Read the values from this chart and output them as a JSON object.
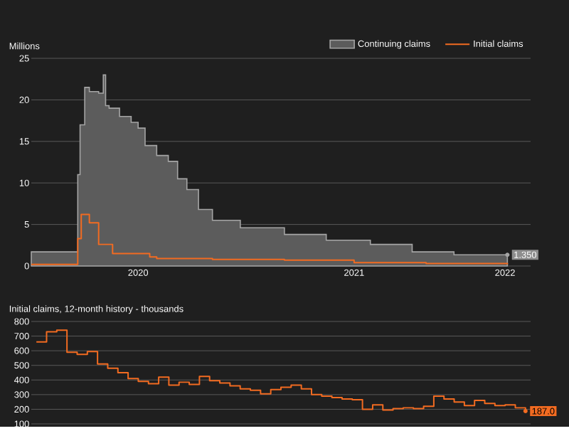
{
  "chart_data": [
    {
      "type": "area",
      "ylabel": "Millions",
      "legend": "top right",
      "grid": "y",
      "xlim": [
        2020.0,
        2022.15
      ],
      "ylim": [
        0,
        25
      ],
      "yticks": [
        0,
        5,
        10,
        15,
        20,
        25
      ],
      "xticks": [
        {
          "value": 2020.46,
          "label": "2020"
        },
        {
          "value": 2021.39,
          "label": "2021"
        },
        {
          "value": 2022.04,
          "label": "2022"
        }
      ],
      "series": [
        {
          "name": "Continuing claims",
          "type": "area",
          "color": "#5c5c5c",
          "x": [
            2020.0,
            2020.2,
            2020.21,
            2020.23,
            2020.25,
            2020.29,
            2020.31,
            2020.32,
            2020.335,
            2020.38,
            2020.43,
            2020.46,
            2020.49,
            2020.54,
            2020.59,
            2020.63,
            2020.67,
            2020.72,
            2020.78,
            2020.9,
            2021.09,
            2021.27,
            2021.46,
            2021.64,
            2021.82,
            2022.05
          ],
          "values": [
            1.7,
            1.7,
            11,
            17,
            21.5,
            21,
            20.8,
            23,
            19.3,
            19,
            18,
            17.3,
            16.6,
            14.5,
            13.3,
            12.6,
            10.5,
            9.2,
            6.8,
            5.5,
            4.6,
            3.8,
            3.1,
            2.6,
            1.7,
            1.35
          ],
          "value_labels": [
            null,
            null,
            null,
            null,
            null,
            null,
            null,
            null,
            null,
            null,
            null,
            null,
            null,
            null,
            null,
            null,
            null,
            null,
            null,
            null,
            null,
            null,
            null,
            null,
            null,
            "1.350"
          ]
        },
        {
          "name": "Initial claims",
          "type": "step",
          "color": "#f26b21",
          "x": [
            2020.0,
            2020.2,
            2020.215,
            2020.25,
            2020.29,
            2020.35,
            2020.48,
            2020.51,
            2020.54,
            2020.78,
            2021.09,
            2021.39,
            2021.7,
            2022.05
          ],
          "values": [
            0.2,
            3.3,
            6.2,
            5.2,
            2.6,
            1.5,
            1.5,
            1.1,
            0.9,
            0.8,
            0.7,
            0.4,
            0.3,
            0.2
          ]
        }
      ]
    },
    {
      "type": "step",
      "title": "Initial claims, 12-month history - thousands",
      "grid": "y",
      "ylim": [
        100,
        800
      ],
      "yticks": [
        100,
        200,
        300,
        400,
        500,
        600,
        700,
        800
      ],
      "categories": [
        null,
        null,
        null,
        null,
        null,
        null,
        null,
        null,
        null,
        null,
        null,
        null,
        null,
        null,
        null,
        null,
        null,
        null,
        null,
        null,
        null,
        null,
        null,
        null,
        null,
        null,
        null,
        null,
        null,
        null,
        null,
        null,
        null,
        null,
        null,
        null,
        null,
        null,
        null,
        null,
        null,
        null,
        null,
        null,
        null,
        null,
        null,
        null,
        null
      ],
      "series": [
        {
          "color": "#f26b21",
          "values": [
            660,
            730,
            740,
            590,
            575,
            595,
            510,
            480,
            450,
            410,
            390,
            375,
            420,
            365,
            385,
            370,
            425,
            395,
            380,
            360,
            340,
            330,
            305,
            335,
            350,
            365,
            340,
            300,
            290,
            280,
            270,
            265,
            200,
            230,
            195,
            205,
            210,
            205,
            220,
            290,
            270,
            250,
            225,
            260,
            240,
            225,
            230,
            210,
            187
          ],
          "value_labels": [
            null,
            null,
            null,
            null,
            null,
            null,
            null,
            null,
            null,
            null,
            null,
            null,
            null,
            null,
            null,
            null,
            null,
            null,
            null,
            null,
            null,
            null,
            null,
            null,
            null,
            null,
            null,
            null,
            null,
            null,
            null,
            null,
            null,
            null,
            null,
            null,
            null,
            null,
            null,
            null,
            null,
            null,
            null,
            null,
            null,
            null,
            null,
            null,
            "187.0"
          ]
        }
      ]
    }
  ]
}
